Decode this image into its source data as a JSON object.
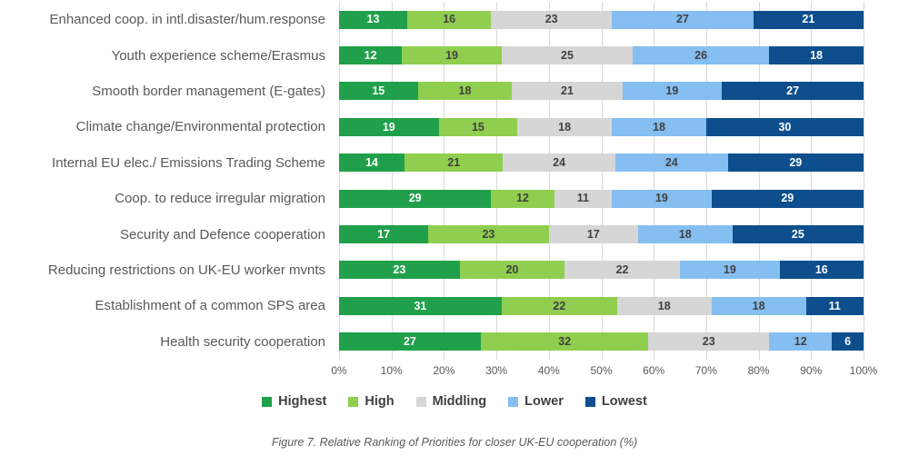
{
  "figure": {
    "caption": "Figure 7. Relative Ranking of Priorities for closer UK-EU cooperation (%)"
  },
  "chart_data": {
    "type": "bar",
    "orientation": "horizontal",
    "stacked": true,
    "title": "",
    "xlabel": "",
    "ylabel": "",
    "xlim": [
      0,
      100
    ],
    "grid": "vertical",
    "legend_position": "bottom",
    "x_ticks": [
      "0%",
      "10%",
      "20%",
      "30%",
      "40%",
      "50%",
      "60%",
      "70%",
      "80%",
      "90%",
      "100%"
    ],
    "categories": [
      "Enhanced coop. in intl.disaster/hum.response",
      "Youth experience scheme/Erasmus",
      "Smooth border management (E-gates)",
      "Climate change/Environmental protection",
      "Internal EU elec./ Emissions Trading Scheme",
      "Coop. to reduce irregular migration",
      "Security and Defence cooperation",
      "Reducing restrictions on UK-EU worker mvnts",
      "Establishment of a common SPS area",
      "Health security cooperation"
    ],
    "series": [
      {
        "name": "Highest",
        "color": "#21A04B",
        "label_color": "#ffffff",
        "values": [
          13,
          12,
          15,
          19,
          14,
          29,
          17,
          23,
          31,
          27
        ]
      },
      {
        "name": "High",
        "color": "#90CE4F",
        "label_color": "#404040",
        "values": [
          16,
          19,
          18,
          15,
          21,
          12,
          23,
          20,
          22,
          32
        ]
      },
      {
        "name": "Middling",
        "color": "#D6D6D6",
        "label_color": "#404040",
        "values": [
          23,
          25,
          21,
          18,
          24,
          11,
          17,
          22,
          18,
          23
        ]
      },
      {
        "name": "Lower",
        "color": "#85BEF0",
        "label_color": "#404040",
        "values": [
          27,
          26,
          19,
          18,
          24,
          19,
          18,
          19,
          18,
          12
        ]
      },
      {
        "name": "Lowest",
        "color": "#0E4E8C",
        "label_color": "#ffffff",
        "values": [
          21,
          18,
          27,
          30,
          29,
          29,
          25,
          16,
          11,
          6
        ]
      }
    ],
    "colors": {
      "gridline": "#d9d9d9",
      "category_label": "#595959",
      "axis_label": "#595959",
      "legend_label": "#404040"
    }
  }
}
